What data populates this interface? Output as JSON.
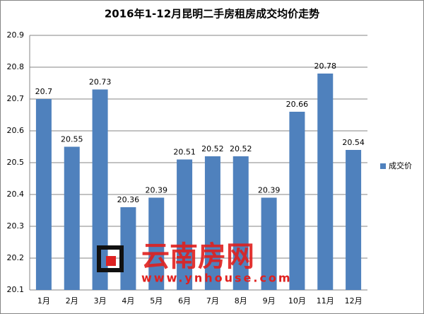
{
  "chart_data": {
    "type": "bar",
    "title": "2016年1-12月昆明二手房租房成交均价走势",
    "categories": [
      "1月",
      "2月",
      "3月",
      "4月",
      "5月",
      "6月",
      "7月",
      "8月",
      "9月",
      "10月",
      "11月",
      "12月"
    ],
    "series": [
      {
        "name": "成交价",
        "color": "#4f81bd",
        "values": [
          20.7,
          20.55,
          20.73,
          20.36,
          20.39,
          20.51,
          20.52,
          20.52,
          20.39,
          20.66,
          20.78,
          20.54
        ]
      }
    ],
    "ylim": [
      20.1,
      20.9
    ],
    "yticks": [
      20.1,
      20.2,
      20.3,
      20.4,
      20.5,
      20.6,
      20.7,
      20.8,
      20.9
    ],
    "grid": true,
    "legend": "right",
    "watermark": {
      "text": "云南房网",
      "url": "www.ynhouse.com"
    }
  }
}
